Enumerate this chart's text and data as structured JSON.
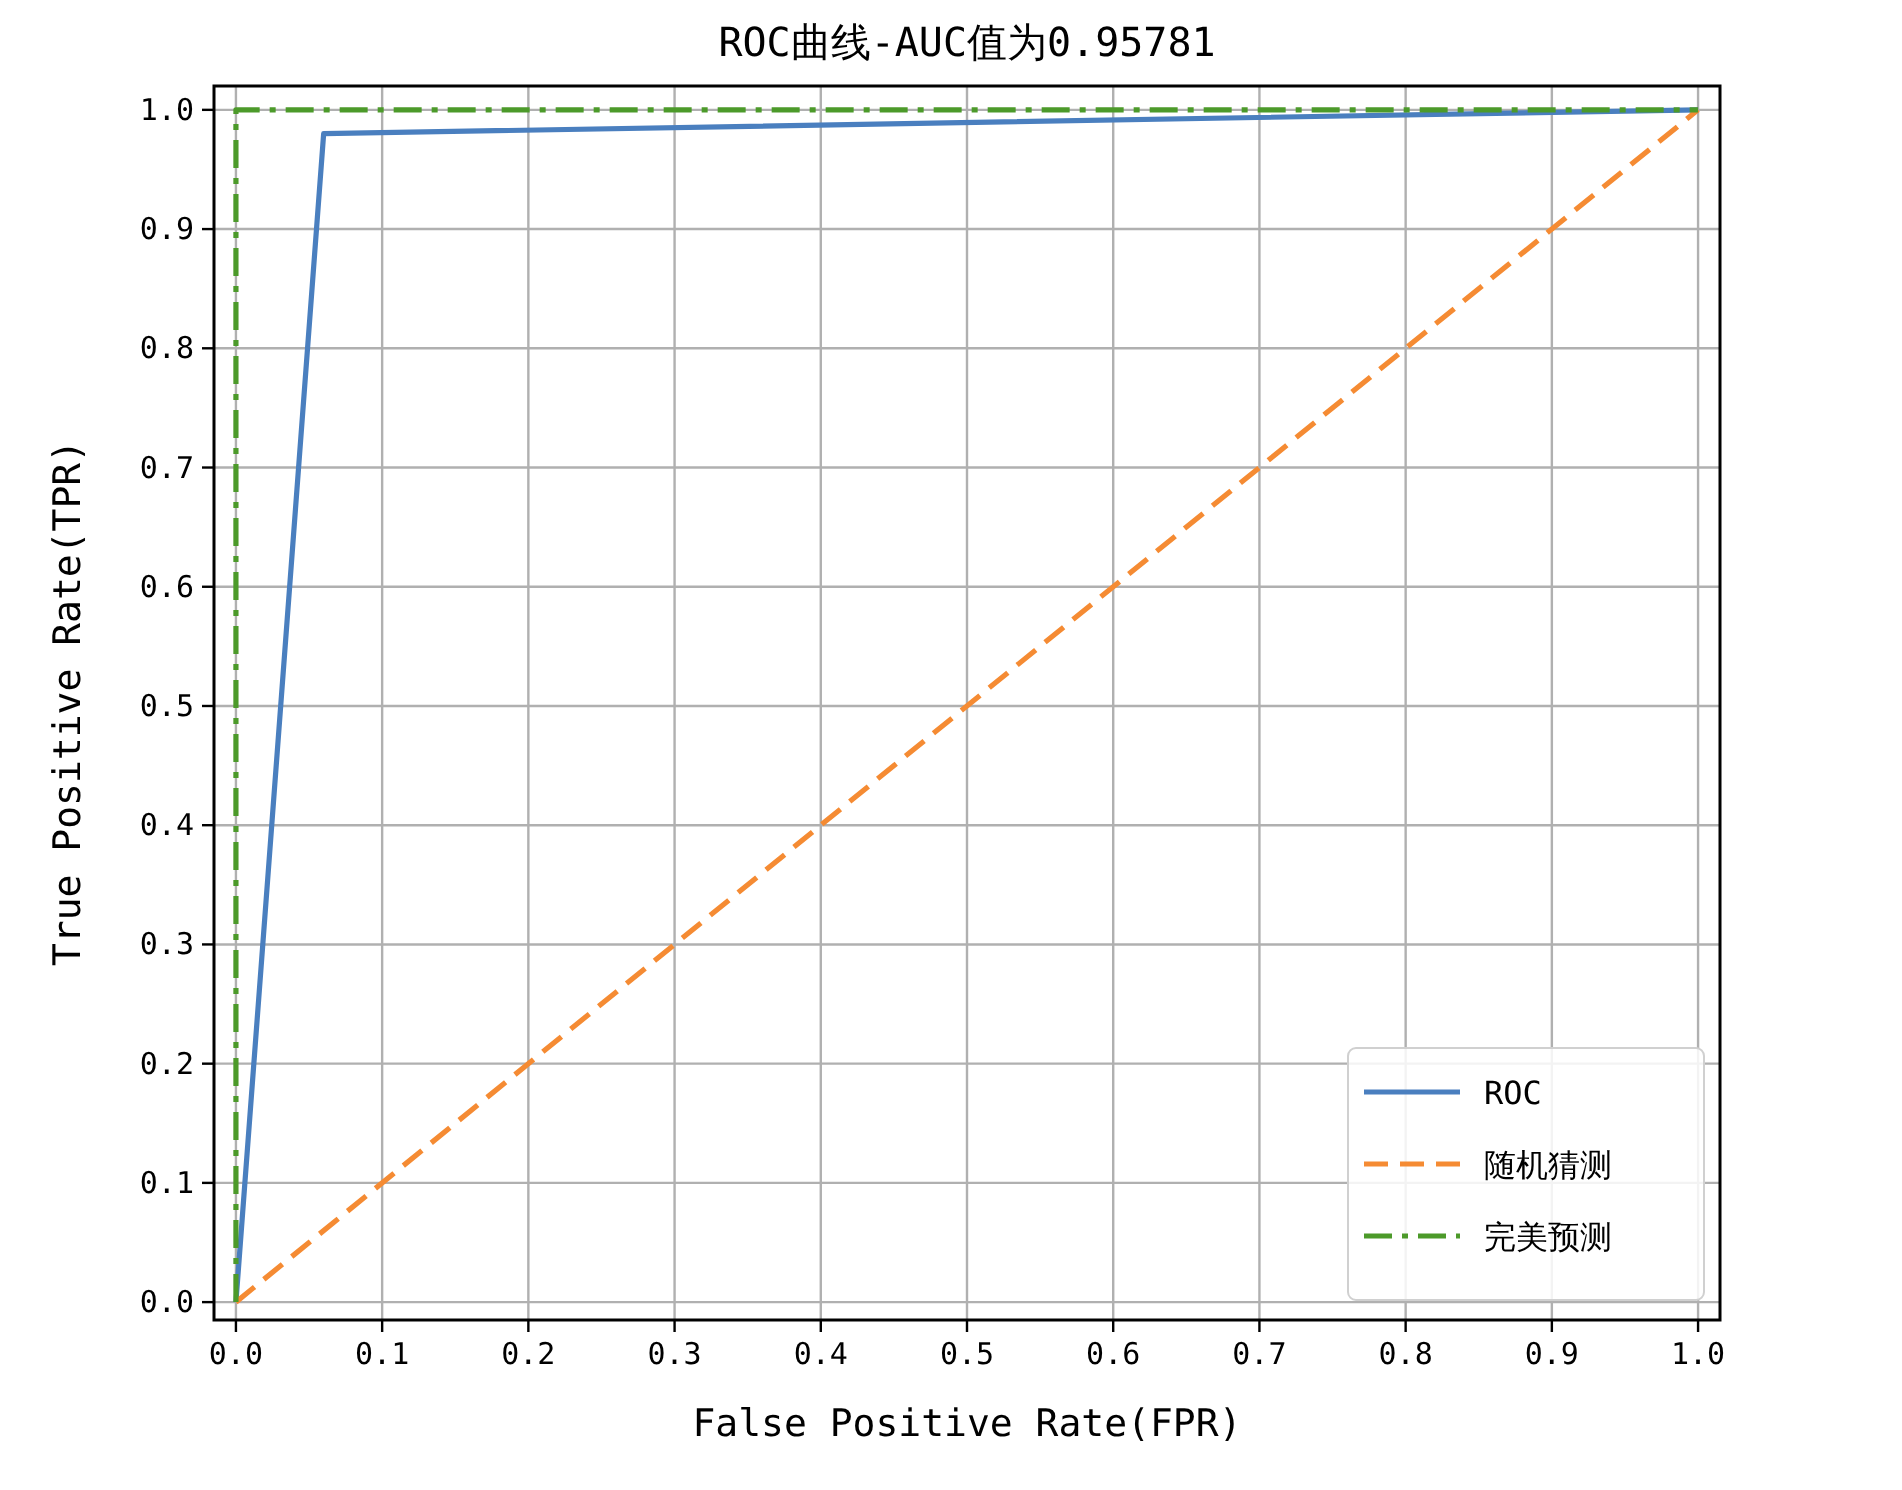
{
  "chart_data": {
    "type": "line",
    "title": "ROC曲线-AUC值为0.95781",
    "xlabel": "False Positive Rate(FPR)",
    "ylabel": "True Positive Rate(TPR)",
    "series": [
      {
        "name": "ROC",
        "color": "#4a7fbf",
        "x": [
          0,
          0.06,
          1
        ],
        "values": [
          0,
          0.98,
          1
        ],
        "line_style": "solid"
      },
      {
        "name": "随机猜测",
        "color": "#f58b33",
        "x": [
          0,
          1
        ],
        "values": [
          0,
          1
        ],
        "line_style": "dashed"
      },
      {
        "name": "完美预测",
        "color": "#4c9a2a",
        "x": [
          0,
          0,
          1
        ],
        "values": [
          0,
          1,
          1
        ],
        "line_style": "dashdot"
      }
    ],
    "xlim": [
      -0.015,
      1.015
    ],
    "ylim": [
      -0.015,
      1.02
    ],
    "xticks": [
      {
        "value": 0,
        "label": "0.0"
      },
      0.1,
      0.2,
      0.3,
      0.4,
      0.5,
      0.6,
      0.7,
      0.8,
      0.9,
      {
        "value": 1,
        "label": "1.0"
      }
    ],
    "yticks": [
      {
        "value": 0,
        "label": "0.0"
      },
      0.1,
      0.2,
      0.3,
      0.4,
      0.5,
      0.6,
      0.7,
      0.8,
      0.9,
      {
        "value": 1,
        "label": "1.0"
      }
    ],
    "grid": true,
    "legend": "bottom right",
    "marker": "none"
  }
}
